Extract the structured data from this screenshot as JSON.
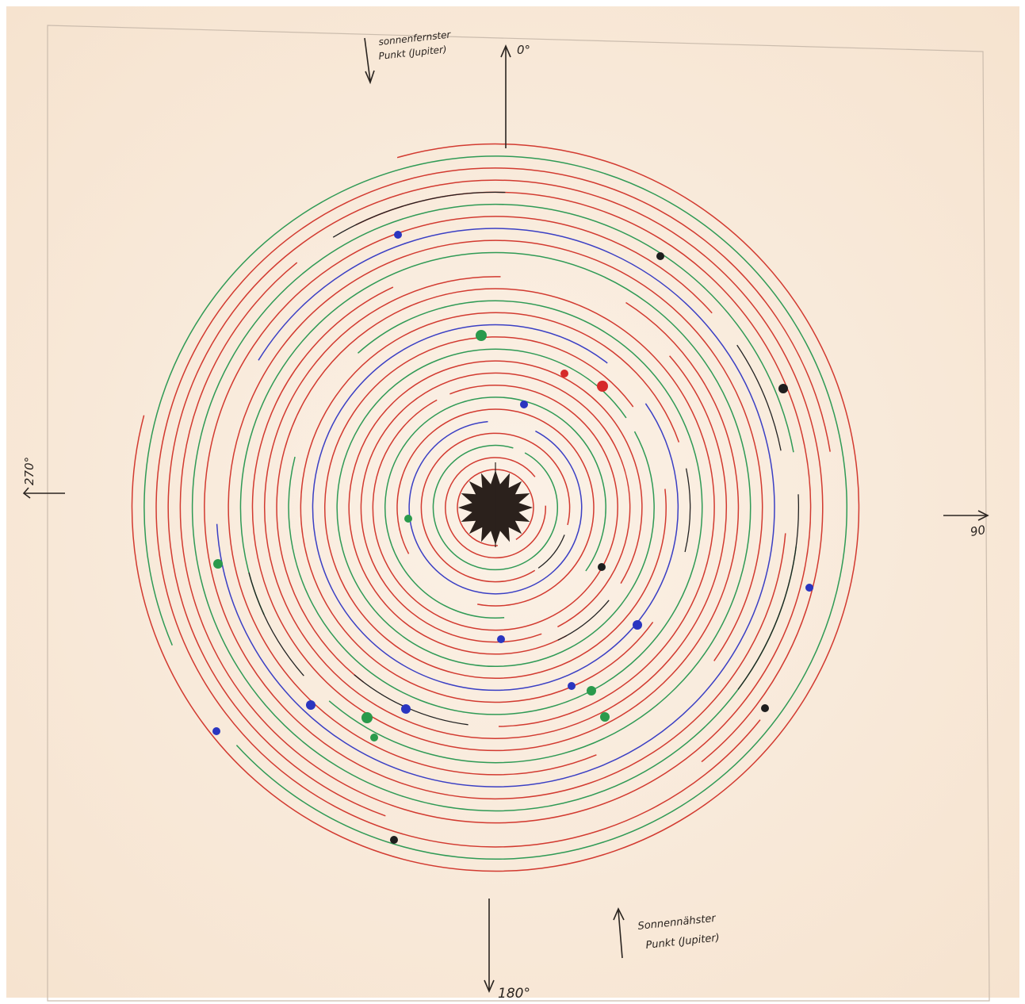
{
  "top_note": {
    "line1": "sonnenfernster",
    "line2": "Punkt (Jupiter)"
  },
  "angle_0": "0°",
  "angle_90": "90",
  "angle_180": "180°",
  "angle_270": "270°",
  "bottom_note": {
    "line1": "Sonnennähster",
    "line2": "Punkt (Jupiter)"
  }
}
